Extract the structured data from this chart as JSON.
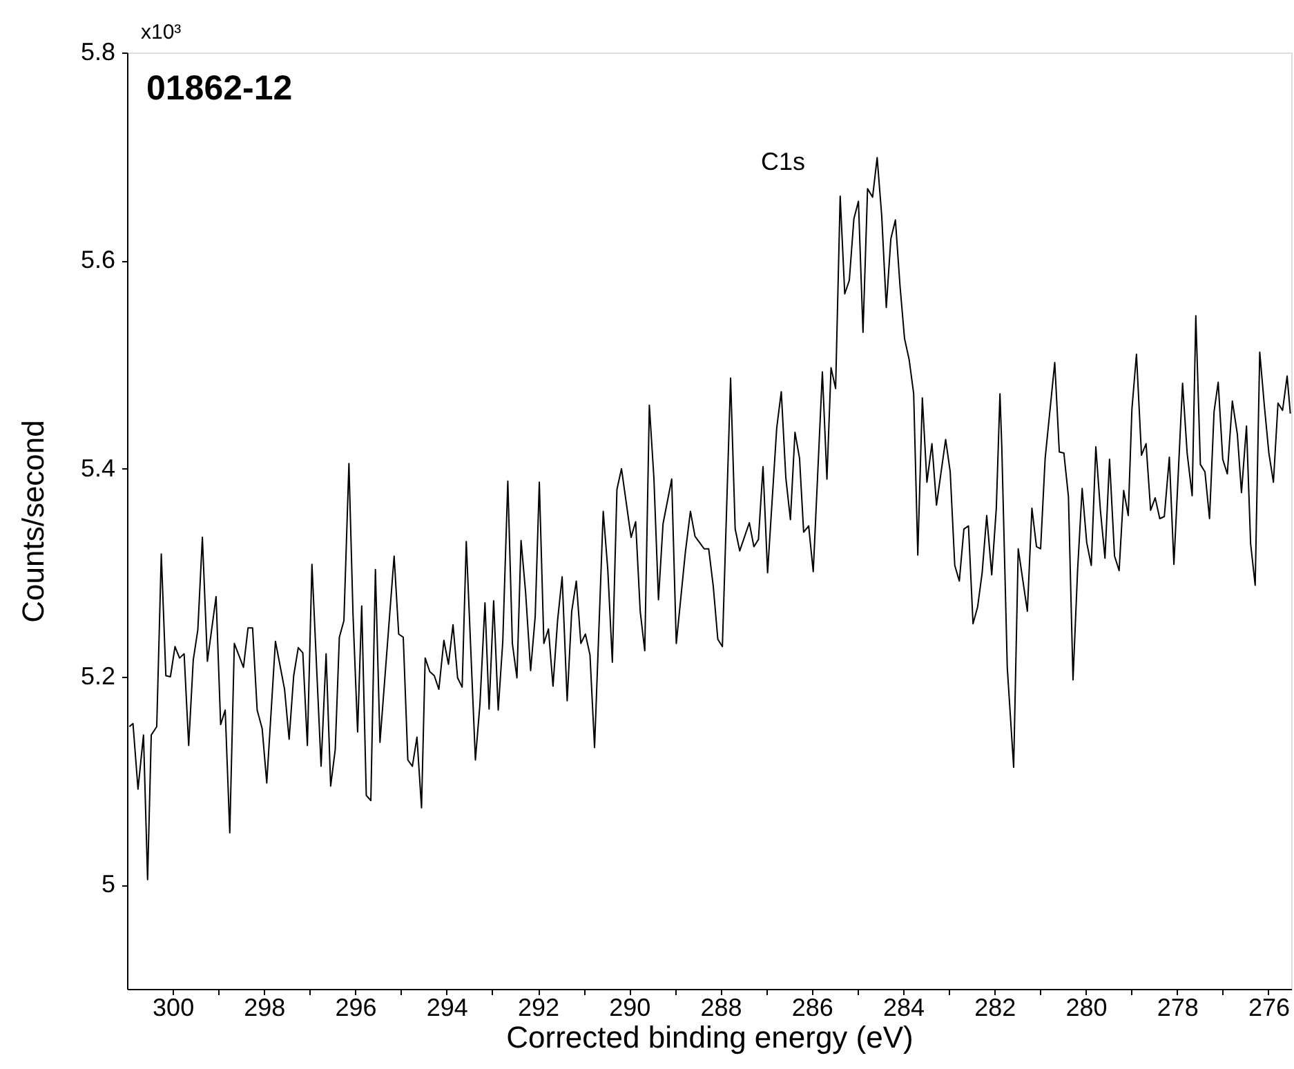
{
  "chart_data": {
    "type": "line",
    "title": "01862-12",
    "xlabel": "Corrected binding energy (eV)",
    "ylabel": "Counts/second",
    "annotations": [
      "x10³",
      "C1s"
    ],
    "x": [
      300.95,
      300.87,
      300.76,
      300.64,
      300.55,
      300.47,
      300.35,
      300.25,
      300.15,
      300.05,
      299.95,
      299.85,
      299.75,
      299.65,
      299.55,
      299.45,
      299.35,
      299.24,
      299.05,
      298.95,
      298.85,
      298.75,
      298.65,
      298.45,
      298.35,
      298.25,
      298.15,
      298.04,
      297.94,
      297.75,
      297.55,
      297.45,
      297.35,
      297.25,
      297.15,
      297.05,
      296.95,
      296.75,
      296.64,
      296.54,
      296.44,
      296.35,
      296.25,
      296.14,
      296.05,
      295.95,
      295.86,
      295.76,
      295.66,
      295.56,
      295.46,
      295.15,
      295.05,
      294.95,
      294.85,
      294.75,
      294.65,
      294.55,
      294.47,
      294.37,
      294.27,
      294.17,
      294.06,
      293.96,
      293.86,
      293.76,
      293.66,
      293.57,
      293.37,
      293.27,
      293.16,
      293.07,
      292.97,
      292.87,
      292.77,
      292.66,
      292.56,
      292.46,
      292.37,
      292.27,
      292.16,
      292.06,
      291.97,
      291.87,
      291.77,
      291.67,
      291.57,
      291.47,
      291.36,
      291.26,
      291.16,
      291.06,
      290.96,
      290.86,
      290.76,
      290.57,
      290.47,
      290.37,
      290.27,
      290.17,
      289.96,
      289.86,
      289.76,
      289.66,
      289.56,
      289.46,
      289.36,
      289.26,
      289.07,
      288.97,
      288.77,
      288.66,
      288.56,
      288.36,
      288.26,
      288.16,
      288.06,
      287.96,
      287.78,
      287.68,
      287.58,
      287.37,
      287.27,
      287.17,
      287.07,
      286.97,
      286.77,
      286.67,
      286.57,
      286.47,
      286.37,
      286.27,
      286.18,
      286.07,
      285.97,
      285.77,
      285.67,
      285.58,
      285.48,
      285.38,
      285.28,
      285.18,
      285.08,
      284.98,
      284.88,
      284.78,
      284.67,
      284.57,
      284.47,
      284.37,
      284.27,
      284.17,
      284.07,
      283.97,
      283.87,
      283.77,
      283.68,
      283.58,
      283.48,
      283.37,
      283.27,
      283.07,
      282.97,
      282.87,
      282.77,
      282.67,
      282.57,
      282.47,
      282.37,
      282.27,
      282.17,
      282.06,
      281.96,
      281.88,
      281.84,
      281.72,
      281.58,
      281.48,
      281.28,
      281.18,
      281.08,
      280.99,
      280.89,
      280.68,
      280.58,
      280.48,
      280.38,
      280.28,
      280.18,
      280.08,
      279.98,
      279.88,
      279.78,
      279.68,
      279.58,
      279.48,
      279.37,
      279.27,
      279.17,
      279.07,
      278.99,
      278.89,
      278.78,
      278.68,
      278.58,
      278.48,
      278.38,
      278.28,
      278.17,
      278.07,
      277.88,
      277.78,
      277.67,
      277.59,
      277.49,
      277.39,
      277.29,
      277.19,
      277.1,
      277.0,
      276.9,
      276.79,
      276.68,
      276.59,
      276.48,
      276.39,
      276.29,
      276.19,
      276.09,
      275.99,
      275.89,
      275.79,
      275.69,
      275.59,
      275.52
    ],
    "series": [
      {
        "color": "#000000",
        "values": [
          5.152,
          5.155,
          5.092,
          5.144,
          5.005,
          5.144,
          5.152,
          5.318,
          5.201,
          5.2,
          5.229,
          5.218,
          5.222,
          5.134,
          5.216,
          5.245,
          5.334,
          5.215,
          5.277,
          5.154,
          5.168,
          5.05,
          5.232,
          5.209,
          5.247,
          5.247,
          5.168,
          5.15,
          5.098,
          5.234,
          5.188,
          5.14,
          5.201,
          5.228,
          5.223,
          5.134,
          5.308,
          5.114,
          5.222,
          5.095,
          5.13,
          5.238,
          5.254,
          5.405,
          5.259,
          5.147,
          5.268,
          5.086,
          5.081,
          5.303,
          5.137,
          5.316,
          5.241,
          5.238,
          5.12,
          5.114,
          5.142,
          5.074,
          5.218,
          5.205,
          5.201,
          5.188,
          5.235,
          5.212,
          5.25,
          5.199,
          5.19,
          5.33,
          5.12,
          5.174,
          5.271,
          5.169,
          5.273,
          5.168,
          5.234,
          5.388,
          5.232,
          5.199,
          5.331,
          5.281,
          5.206,
          5.258,
          5.387,
          5.232,
          5.246,
          5.191,
          5.254,
          5.296,
          5.177,
          5.263,
          5.292,
          5.232,
          5.241,
          5.221,
          5.132,
          5.359,
          5.303,
          5.214,
          5.38,
          5.4,
          5.334,
          5.349,
          5.263,
          5.225,
          5.461,
          5.391,
          5.274,
          5.347,
          5.39,
          5.232,
          5.32,
          5.359,
          5.335,
          5.323,
          5.323,
          5.287,
          5.236,
          5.229,
          5.487,
          5.342,
          5.321,
          5.348,
          5.325,
          5.332,
          5.402,
          5.3,
          5.439,
          5.474,
          5.391,
          5.351,
          5.435,
          5.41,
          5.339,
          5.345,
          5.301,
          5.493,
          5.39,
          5.497,
          5.477,
          5.662,
          5.568,
          5.581,
          5.64,
          5.657,
          5.531,
          5.669,
          5.661,
          5.699,
          5.643,
          5.555,
          5.621,
          5.639,
          5.576,
          5.525,
          5.505,
          5.472,
          5.317,
          5.468,
          5.387,
          5.424,
          5.365,
          5.428,
          5.397,
          5.307,
          5.292,
          5.342,
          5.345,
          5.251,
          5.267,
          5.3,
          5.355,
          5.298,
          5.362,
          5.472,
          5.421,
          5.209,
          5.113,
          5.323,
          5.263,
          5.362,
          5.325,
          5.323,
          5.41,
          5.502,
          5.416,
          5.415,
          5.373,
          5.197,
          5.302,
          5.381,
          5.329,
          5.307,
          5.421,
          5.36,
          5.314,
          5.409,
          5.316,
          5.302,
          5.379,
          5.355,
          5.457,
          5.51,
          5.413,
          5.424,
          5.36,
          5.372,
          5.352,
          5.354,
          5.411,
          5.308,
          5.482,
          5.415,
          5.374,
          5.547,
          5.404,
          5.397,
          5.352,
          5.455,
          5.483,
          5.409,
          5.395,
          5.465,
          5.433,
          5.377,
          5.441,
          5.328,
          5.288,
          5.512,
          5.461,
          5.415,
          5.387,
          5.463,
          5.456,
          5.489,
          5.453
        ]
      }
    ],
    "xlim": [
      301,
      275.5
    ],
    "ylim": [
      4.9,
      5.8
    ],
    "xticks": [
      300,
      {
        "value": 299,
        "label": null
      },
      298,
      {
        "value": 297,
        "label": null
      },
      296,
      {
        "value": 295,
        "label": null
      },
      294,
      {
        "value": 293,
        "label": null
      },
      292,
      {
        "value": 291,
        "label": null
      },
      290,
      {
        "value": 289,
        "label": null
      },
      288,
      {
        "value": 287,
        "label": null
      },
      286,
      {
        "value": 285,
        "label": null
      },
      284,
      {
        "value": 283,
        "label": null
      },
      282,
      {
        "value": 281,
        "label": null
      },
      280,
      {
        "value": 279,
        "label": null
      },
      278,
      {
        "value": 277,
        "label": null
      },
      276
    ],
    "yticks": [
      5,
      5.2,
      5.4,
      5.6,
      5.8
    ],
    "line_style": "solid"
  }
}
